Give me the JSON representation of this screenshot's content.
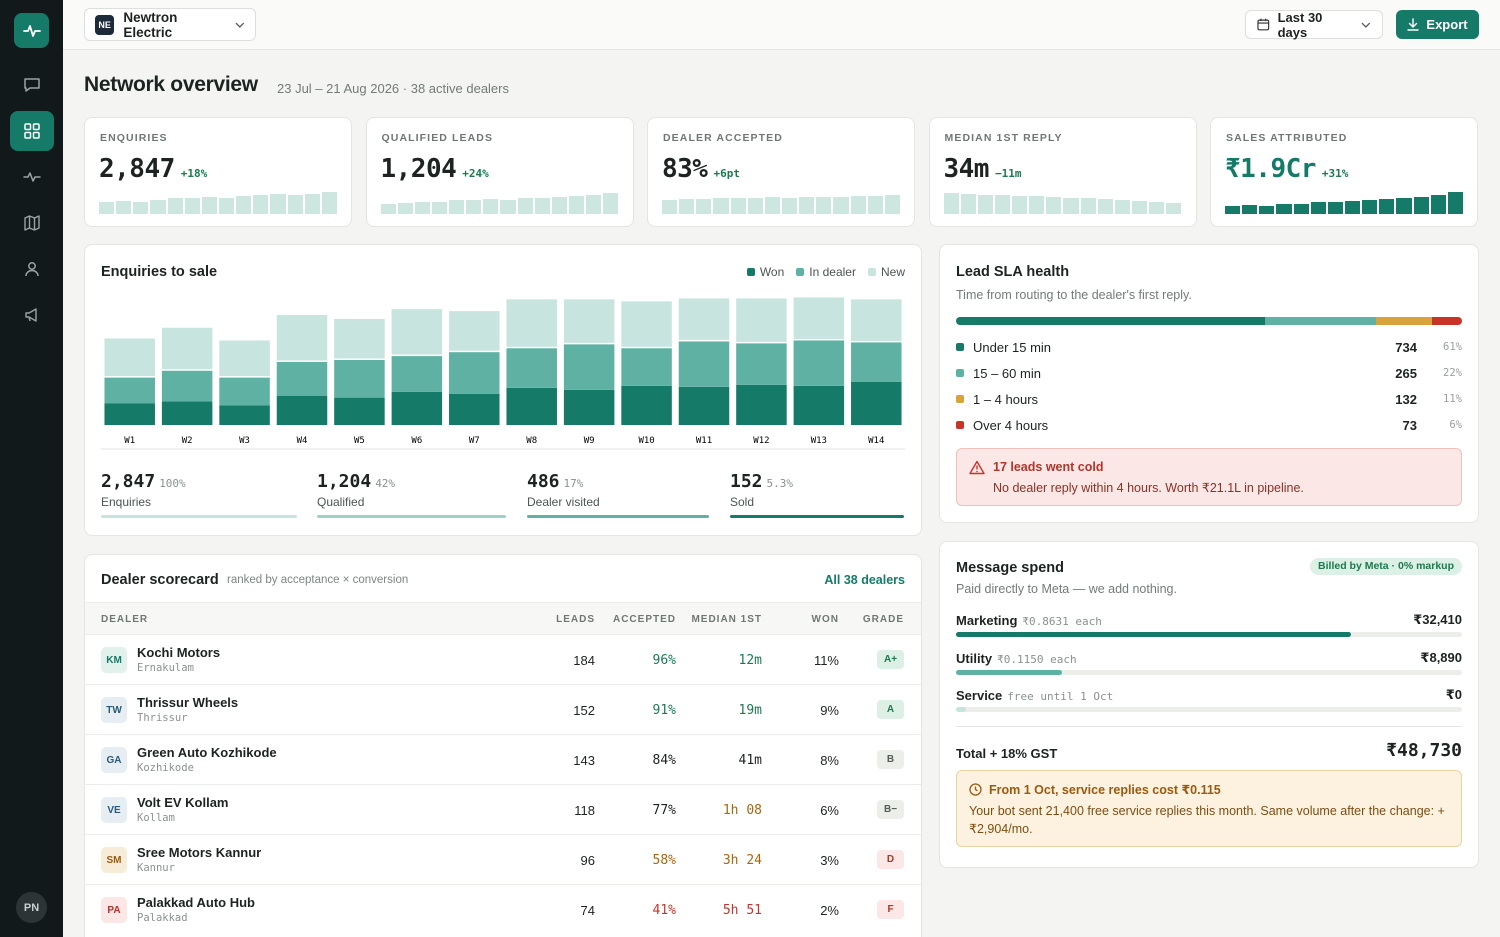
{
  "org": {
    "initials": "NE",
    "name": "Newtron Electric"
  },
  "date_range": "Last 30 days",
  "export_label": "Export",
  "user_initials": "PN",
  "page": {
    "title": "Network overview",
    "subtitle": "23 Jul – 21 Aug 2026 · 38 active dealers"
  },
  "kpis": [
    {
      "label": "ENQUIRIES",
      "value": "2,847",
      "delta": "+18%",
      "spark": [
        0.45,
        0.5,
        0.45,
        0.55,
        0.6,
        0.6,
        0.65,
        0.62,
        0.7,
        0.72,
        0.78,
        0.72,
        0.76,
        0.85
      ]
    },
    {
      "label": "QUALIFIED LEADS",
      "value": "1,204",
      "delta": "+24%",
      "spark": [
        0.4,
        0.42,
        0.48,
        0.45,
        0.52,
        0.55,
        0.58,
        0.55,
        0.6,
        0.62,
        0.65,
        0.68,
        0.75,
        0.8
      ]
    },
    {
      "label": "DEALER ACCEPTED",
      "value": "83%",
      "delta": "+6pt",
      "spark": [
        0.55,
        0.58,
        0.56,
        0.6,
        0.62,
        0.6,
        0.64,
        0.62,
        0.65,
        0.66,
        0.64,
        0.68,
        0.7,
        0.72
      ]
    },
    {
      "label": "MEDIAN 1ST REPLY",
      "value": "34m",
      "delta": "−11m",
      "spark": [
        0.8,
        0.78,
        0.75,
        0.72,
        0.7,
        0.68,
        0.66,
        0.62,
        0.6,
        0.58,
        0.55,
        0.5,
        0.46,
        0.42
      ]
    },
    {
      "label": "SALES ATTRIBUTED",
      "value": "₹1.9Cr",
      "delta": "+31%",
      "spark": [
        0.3,
        0.35,
        0.32,
        0.4,
        0.38,
        0.45,
        0.48,
        0.5,
        0.55,
        0.58,
        0.6,
        0.65,
        0.75,
        0.85
      ]
    }
  ],
  "enquiries": {
    "title": "Enquiries to sale",
    "legend": [
      {
        "label": "Won",
        "color": "#157a68"
      },
      {
        "label": "In dealer",
        "color": "#5fb2a3"
      },
      {
        "label": "New",
        "color": "#c8e4de"
      }
    ],
    "funnel": [
      {
        "num": "2,847",
        "pct": "100%",
        "label": "Enquiries",
        "color": "#c8e4de"
      },
      {
        "num": "1,204",
        "pct": "42%",
        "label": "Qualified",
        "color": "#9fd0c6"
      },
      {
        "num": "486",
        "pct": "17%",
        "label": "Dealer visited",
        "color": "#5fb2a3"
      },
      {
        "num": "152",
        "pct": "5.3%",
        "label": "Sold",
        "color": "#157a68"
      }
    ]
  },
  "chart_data": {
    "type": "bar",
    "stacked": true,
    "categories": [
      "W1",
      "W2",
      "W3",
      "W4",
      "W5",
      "W6",
      "W7",
      "W8",
      "W9",
      "W10",
      "W11",
      "W12",
      "W13",
      "W14"
    ],
    "series": [
      {
        "name": "Won",
        "values": [
          22,
          24,
          20,
          30,
          28,
          34,
          32,
          38,
          36,
          40,
          39,
          41,
          40,
          44
        ]
      },
      {
        "name": "In dealer",
        "values": [
          28,
          33,
          30,
          36,
          40,
          38,
          44,
          42,
          48,
          40,
          48,
          44,
          48,
          42
        ]
      },
      {
        "name": "New",
        "values": [
          40,
          44,
          38,
          48,
          42,
          48,
          42,
          50,
          46,
          48,
          44,
          46,
          44,
          44
        ]
      }
    ],
    "ylim": [
      0,
      135
    ],
    "legend_position": "top-right"
  },
  "sla": {
    "title": "Lead SLA health",
    "subtitle": "Time from routing to the dealer's first reply.",
    "rows": [
      {
        "label": "Under 15 min",
        "count": "734",
        "pct": "61%",
        "share": 61,
        "color": "#157a68"
      },
      {
        "label": "15 – 60 min",
        "count": "265",
        "pct": "22%",
        "share": 22,
        "color": "#5fb2a3"
      },
      {
        "label": "1 – 4 hours",
        "count": "132",
        "pct": "11%",
        "share": 11,
        "color": "#d9a23b"
      },
      {
        "label": "Over 4 hours",
        "count": "73",
        "pct": "6%",
        "share": 6,
        "color": "#c9342a"
      }
    ],
    "alert_title": "17 leads went cold",
    "alert_text": "No dealer reply within 4 hours. Worth ₹21.1L in pipeline."
  },
  "scorecard": {
    "title": "Dealer scorecard",
    "subtitle": "ranked by acceptance × conversion",
    "link": "All 38 dealers",
    "headers": {
      "dealer": "DEALER",
      "leads": "LEADS",
      "accepted": "ACCEPTED",
      "median": "MEDIAN 1ST",
      "won": "WON",
      "grade": "GRADE"
    },
    "rows": [
      {
        "ini": "KM",
        "name": "Kochi Motors",
        "city": "Ernakulam",
        "leads": "184",
        "accepted": "96%",
        "median": "12m",
        "won": "11%",
        "grade": "A+",
        "tone": "green"
      },
      {
        "ini": "TW",
        "name": "Thrissur Wheels",
        "city": "Thrissur",
        "leads": "152",
        "accepted": "91%",
        "median": "19m",
        "won": "9%",
        "grade": "A",
        "tone": "green"
      },
      {
        "ini": "GA",
        "name": "Green Auto Kozhikode",
        "city": "Kozhikode",
        "leads": "143",
        "accepted": "84%",
        "median": "41m",
        "won": "8%",
        "grade": "B",
        "tone": "neutral"
      },
      {
        "ini": "VE",
        "name": "Volt EV Kollam",
        "city": "Kollam",
        "leads": "118",
        "accepted": "77%",
        "median": "1h 08",
        "won": "6%",
        "grade": "B−",
        "tone": "amber"
      },
      {
        "ini": "SM",
        "name": "Sree Motors Kannur",
        "city": "Kannur",
        "leads": "96",
        "accepted": "58%",
        "median": "3h 24",
        "won": "3%",
        "grade": "D",
        "tone": "amber"
      },
      {
        "ini": "PA",
        "name": "Palakkad Auto Hub",
        "city": "Palakkad",
        "leads": "74",
        "accepted": "41%",
        "median": "5h 51",
        "won": "2%",
        "grade": "F",
        "tone": "red"
      }
    ]
  },
  "spend": {
    "title": "Message spend",
    "subtitle": "Paid directly to Meta — we add nothing.",
    "badge": "Billed by Meta · 0% markup",
    "rows": [
      {
        "label": "Marketing",
        "rate": "₹0.8631 each",
        "amount": "₹32,410",
        "fill": 0.78,
        "color": "#157a68"
      },
      {
        "label": "Utility",
        "rate": "₹0.1150 each",
        "amount": "₹8,890",
        "fill": 0.21,
        "color": "#5fb2a3"
      },
      {
        "label": "Service",
        "rate": "free until 1 Oct",
        "amount": "₹0",
        "fill": 0.02,
        "color": "#c8e4de"
      }
    ],
    "total_label": "Total + 18% GST",
    "total_value": "₹48,730",
    "alert_title": "From 1 Oct, service replies cost ₹0.115",
    "alert_text": "Your bot sent 21,400 free service replies this month. Same volume after the change: + ₹2,904/mo."
  }
}
